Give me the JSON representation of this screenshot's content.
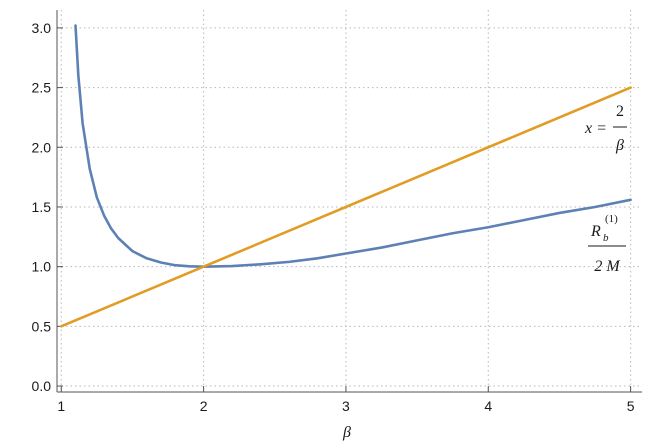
{
  "chart_data": {
    "type": "line",
    "title": "",
    "xlabel": "β",
    "ylabel": "",
    "xlim": [
      0.97,
      5.08
    ],
    "ylim": [
      -0.05,
      3.15
    ],
    "grid": true,
    "grid_style": "dotted",
    "x_ticks": [
      "1",
      "2",
      "3",
      "4",
      "5"
    ],
    "y_ticks": [
      "0.0",
      "0.5",
      "1.0",
      "1.5",
      "2.0",
      "2.5",
      "3.0"
    ],
    "colors": {
      "blue": "#5e81b5",
      "orange": "#e19c24",
      "grid": "#b8b8b8",
      "axis": "#555555"
    },
    "series": [
      {
        "color": "#5e81b5",
        "x": [
          1.1,
          1.12,
          1.15,
          1.2,
          1.25,
          1.3,
          1.35,
          1.4,
          1.5,
          1.6,
          1.7,
          1.8,
          1.9,
          2.0,
          2.2,
          2.4,
          2.6,
          2.8,
          3.0,
          3.25,
          3.5,
          3.75,
          4.0,
          4.25,
          4.5,
          4.75,
          5.0
        ],
        "y": [
          3.02,
          2.6,
          2.2,
          1.82,
          1.58,
          1.43,
          1.32,
          1.24,
          1.13,
          1.07,
          1.035,
          1.012,
          1.003,
          1.0,
          1.005,
          1.02,
          1.04,
          1.07,
          1.11,
          1.16,
          1.22,
          1.28,
          1.33,
          1.39,
          1.45,
          1.5,
          1.56
        ]
      },
      {
        "color": "#e19c24",
        "x": [
          1,
          5
        ],
        "y": [
          0.5,
          2.5
        ]
      }
    ],
    "annotations": {
      "orange": {
        "lhs": "x =",
        "num": "2",
        "den": "β"
      },
      "blue": {
        "main": "R",
        "sub": "b",
        "sup": "(1)",
        "den": "2 M"
      }
    }
  }
}
